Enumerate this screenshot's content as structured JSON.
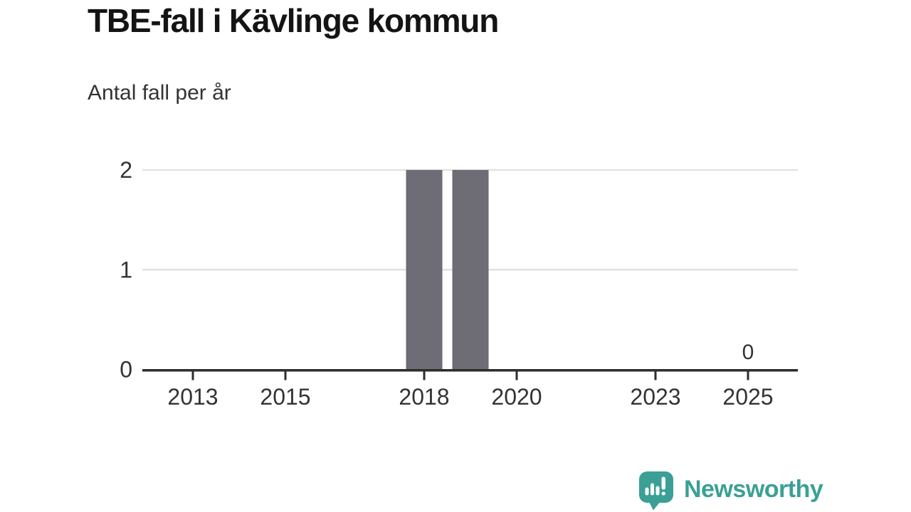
{
  "page": {
    "background": "#ffffff"
  },
  "chart_data": {
    "type": "bar",
    "title": "TBE-fall i Kävlinge kommun",
    "subtitle": "Antal fall per år",
    "x": [
      2012,
      2013,
      2014,
      2015,
      2016,
      2017,
      2018,
      2019,
      2020,
      2021,
      2022,
      2023,
      2024,
      2025
    ],
    "values": [
      0,
      0,
      0,
      0,
      0,
      0,
      2,
      2,
      0,
      0,
      0,
      0,
      0,
      0
    ],
    "xticks": [
      "2013",
      "2015",
      "2018",
      "2020",
      "2023",
      "2025"
    ],
    "yticks": [
      "0",
      "1",
      "2"
    ],
    "ylim": [
      0,
      2
    ],
    "xlabel": "",
    "ylabel": "",
    "legend": "none",
    "grid": "horizontal",
    "annotations": [
      {
        "x": 2025,
        "y": 0,
        "label": "0"
      }
    ],
    "colors": {
      "bar": "#6e6c74",
      "axis": "#2d2d2d",
      "grid": "#e2e2e2",
      "tick_labels": "#333333"
    }
  },
  "footer": {
    "logo_text": "Newsworthy",
    "brand_color": "#3aa096",
    "logo_icon": "speech-bubble-with-bar-chart-and-exclamation"
  }
}
